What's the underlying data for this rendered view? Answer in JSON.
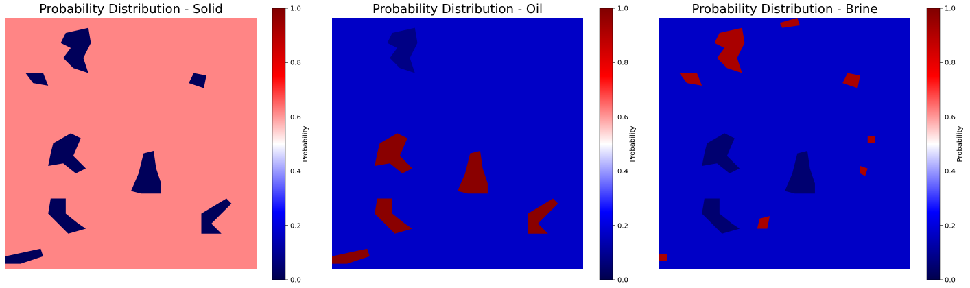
{
  "chart_data": [
    {
      "type": "heatmap",
      "title": "Probability Distribution - Solid",
      "colorbar": {
        "label": "Probability",
        "range": [
          0.0,
          1.0
        ],
        "ticks": [
          "0.0",
          "0.2",
          "0.4",
          "0.6",
          "0.8",
          "1.0"
        ],
        "colormap": "seismic"
      },
      "background_value": 0.62,
      "regions": [
        {
          "value": 0.02,
          "shape": "blob-top-center"
        },
        {
          "value": 0.02,
          "shape": "blob-left-middle"
        },
        {
          "value": 0.02,
          "shape": "blob-center-left"
        },
        {
          "value": 0.02,
          "shape": "blob-center"
        },
        {
          "value": 0.02,
          "shape": "blob-bottom-left"
        },
        {
          "value": 0.02,
          "shape": "blob-bottom-strip"
        },
        {
          "value": 0.02,
          "shape": "blob-right-lower"
        }
      ]
    },
    {
      "type": "heatmap",
      "title": "Probability Distribution - Oil",
      "colorbar": {
        "label": "Probability",
        "range": [
          0.0,
          1.0
        ],
        "ticks": [
          "0.0",
          "0.2",
          "0.4",
          "0.6",
          "0.8",
          "1.0"
        ],
        "colormap": "seismic"
      },
      "background_value": 0.17,
      "regions": [
        {
          "value": 0.08,
          "shape": "blob-top-center"
        },
        {
          "value": 0.98,
          "shape": "blob-center-left"
        },
        {
          "value": 0.98,
          "shape": "blob-center"
        },
        {
          "value": 0.98,
          "shape": "blob-bottom-left"
        },
        {
          "value": 0.98,
          "shape": "blob-bottom-strip"
        },
        {
          "value": 0.98,
          "shape": "blob-right-lower"
        }
      ]
    },
    {
      "type": "heatmap",
      "title": "Probability Distribution - Brine",
      "colorbar": {
        "label": "Probability",
        "range": [
          0.0,
          1.0
        ],
        "ticks": [
          "0.0",
          "0.2",
          "0.4",
          "0.6",
          "0.8",
          "1.0"
        ],
        "colormap": "seismic"
      },
      "background_value": 0.17,
      "regions": [
        {
          "value": 0.92,
          "shape": "blob-top-center"
        },
        {
          "value": 0.92,
          "shape": "blob-left-middle"
        },
        {
          "value": 0.05,
          "shape": "blob-center-left"
        },
        {
          "value": 0.05,
          "shape": "blob-center"
        },
        {
          "value": 0.05,
          "shape": "blob-bottom-left"
        },
        {
          "value": 0.92,
          "shape": "blob-right-spots"
        }
      ]
    }
  ]
}
